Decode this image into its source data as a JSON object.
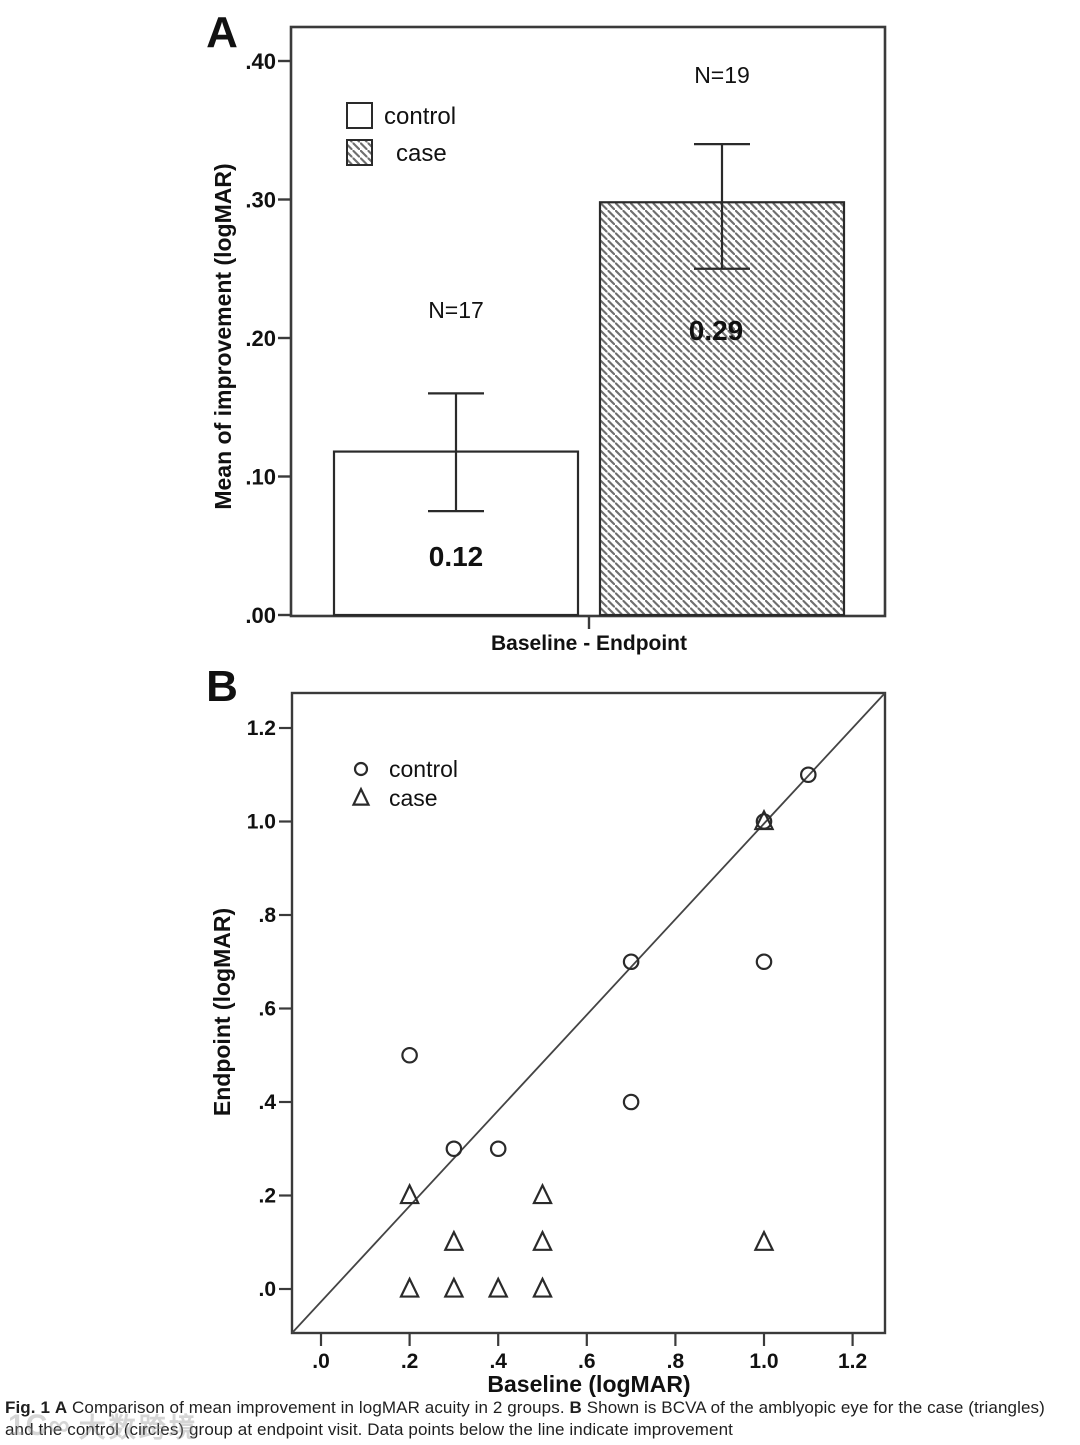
{
  "page": {
    "background": "#ffffff"
  },
  "colors": {
    "ink": "#111111",
    "frame": "#3a3a3a",
    "hatch_line": "#6e6e6e",
    "bar_fill_open": "#ffffff",
    "watermark": "#bdbdbd"
  },
  "chart_data": [
    {
      "type": "bar",
      "panel_label": "A",
      "ylabel": "Mean of improvement (logMAR)",
      "xlabel": "Baseline - Endpoint",
      "ytick_labels": [
        ".00",
        ".10",
        ".20",
        ".30",
        ".40"
      ],
      "ytick_values": [
        0.0,
        0.1,
        0.2,
        0.3,
        0.4
      ],
      "ylim": [
        0.0,
        0.425
      ],
      "grid": "off",
      "legend_position": "upper-left-inside",
      "legend": [
        {
          "label": "control",
          "swatch": "open-square"
        },
        {
          "label": "case",
          "swatch": "hatched-square"
        }
      ],
      "categories": [
        "control",
        "case"
      ],
      "bars": [
        {
          "name": "control",
          "n_label": "N=17",
          "value": 0.12,
          "value_label": "0.12",
          "error_low": 0.075,
          "error_high": 0.16,
          "fill": "open"
        },
        {
          "name": "case",
          "n_label": "N=19",
          "value": 0.29,
          "value_label": "0.29",
          "error_low": 0.25,
          "error_high": 0.34,
          "fill": "hatched"
        }
      ]
    },
    {
      "type": "scatter",
      "panel_label": "B",
      "xlabel": "Baseline (logMAR)",
      "ylabel": "Endpoint (logMAR)",
      "xtick_labels": [
        ".0",
        ".2",
        ".4",
        ".6",
        ".8",
        "1.0",
        "1.2"
      ],
      "xtick_values": [
        0.0,
        0.2,
        0.4,
        0.6,
        0.8,
        1.0,
        1.2
      ],
      "ytick_labels": [
        ".0",
        ".2",
        ".4",
        ".6",
        ".8",
        "1.0",
        "1.2"
      ],
      "ytick_values": [
        0.0,
        0.2,
        0.4,
        0.6,
        0.8,
        1.0,
        1.2
      ],
      "xlim": [
        -0.065,
        1.27
      ],
      "ylim": [
        -0.095,
        1.275
      ],
      "grid": "off",
      "identity_line": true,
      "legend_position": "upper-left-inside",
      "legend": [
        {
          "label": "control",
          "marker": "circle"
        },
        {
          "label": "case",
          "marker": "triangle"
        }
      ],
      "series": [
        {
          "name": "control",
          "marker": "circle",
          "points": [
            [
              0.2,
              0.5
            ],
            [
              0.3,
              0.3
            ],
            [
              0.4,
              0.3
            ],
            [
              0.7,
              0.4
            ],
            [
              0.7,
              0.7
            ],
            [
              1.0,
              0.7
            ],
            [
              1.0,
              1.0
            ],
            [
              1.1,
              1.1
            ]
          ]
        },
        {
          "name": "case",
          "marker": "triangle",
          "points": [
            [
              0.2,
              0.0
            ],
            [
              0.2,
              0.2
            ],
            [
              0.3,
              0.0
            ],
            [
              0.3,
              0.1
            ],
            [
              0.4,
              0.0
            ],
            [
              0.5,
              0.0
            ],
            [
              0.5,
              0.1
            ],
            [
              0.5,
              0.2
            ],
            [
              1.0,
              0.1
            ],
            [
              1.0,
              1.0
            ]
          ]
        }
      ]
    }
  ],
  "caption": {
    "segments": [
      {
        "text": "Fig. 1",
        "bold": true
      },
      {
        "text": "  ",
        "bold": false
      },
      {
        "text": "A",
        "bold": true
      },
      {
        "text": " Comparison of mean improvement in logMAR acuity in 2 groups. ",
        "bold": false
      },
      {
        "text": "B",
        "bold": true
      },
      {
        "text": " Shown is BCVA of the amblyopic eye for the case (triangles) and the control (circles) group at endpoint visit. Data points below the line indicate improvement",
        "bold": false
      }
    ]
  },
  "watermark": {
    "logo": "1C∞",
    "text": "大数跨境"
  }
}
